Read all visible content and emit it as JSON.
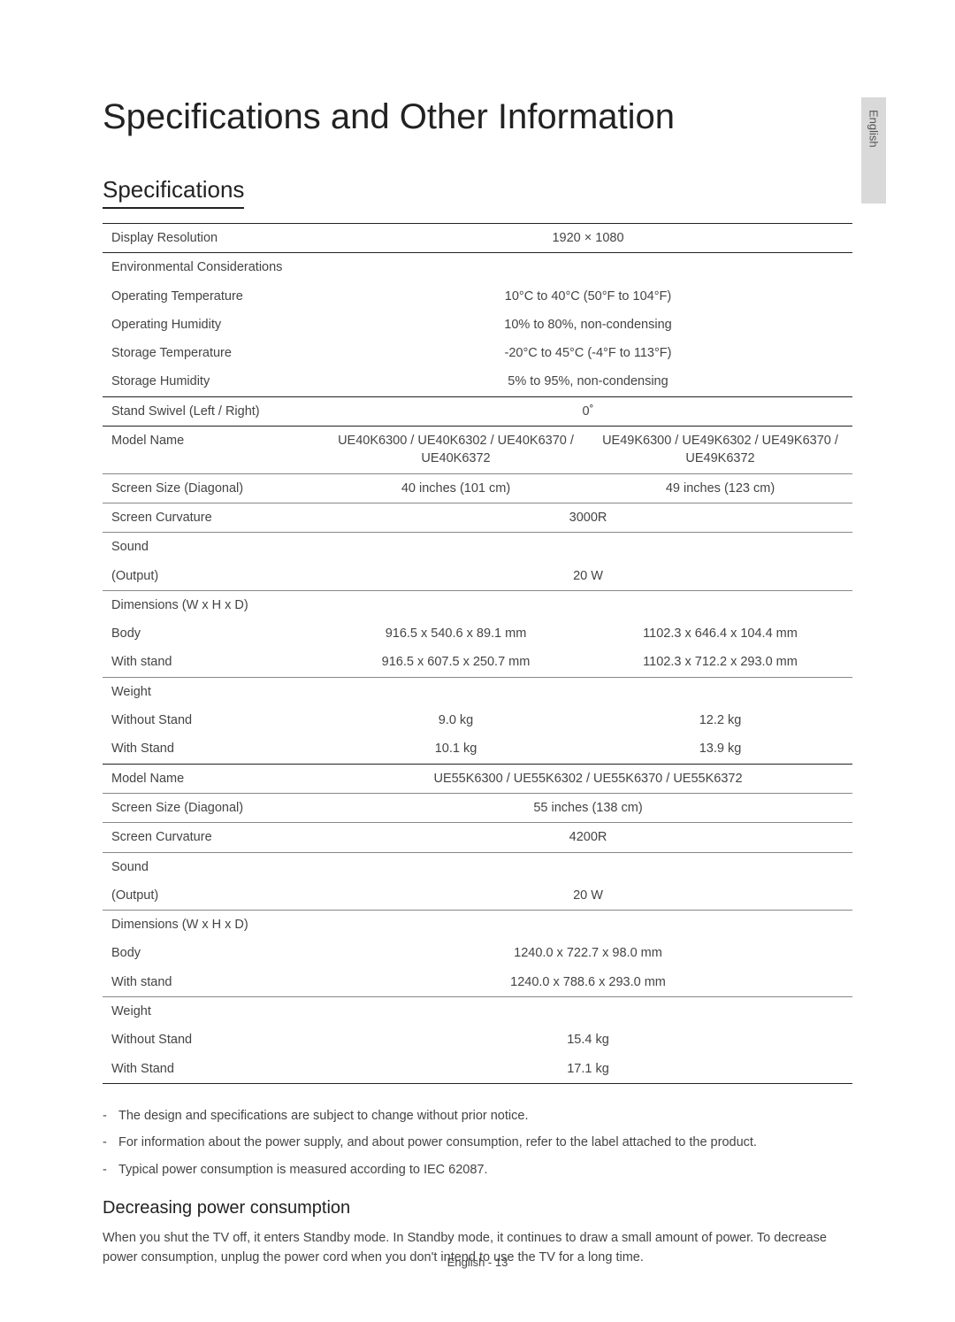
{
  "sideTab": "English",
  "title": "Specifications and Other Information",
  "sectionHeading": "Specifications",
  "rows": [
    {
      "cls": "section-top",
      "label": "Display Resolution",
      "cells": [
        "1920 × 1080"
      ],
      "span": 2
    },
    {
      "cls": "section-top",
      "label": "Environmental Considerations",
      "cells": [
        ""
      ],
      "span": 2
    },
    {
      "cls": "",
      "label": "Operating Temperature",
      "cells": [
        "10°C to 40°C (50°F to 104°F)"
      ],
      "span": 2
    },
    {
      "cls": "",
      "label": "Operating Humidity",
      "cells": [
        "10% to 80%, non-condensing"
      ],
      "span": 2
    },
    {
      "cls": "",
      "label": "Storage Temperature",
      "cells": [
        "-20°C to 45°C (-4°F to 113°F)"
      ],
      "span": 2
    },
    {
      "cls": "",
      "label": "Storage Humidity",
      "cells": [
        "5% to 95%, non-condensing"
      ],
      "span": 2
    },
    {
      "cls": "section-top",
      "label": "Stand Swivel (Left / Right)",
      "cells": [
        "0˚"
      ],
      "span": 2
    },
    {
      "cls": "section-top",
      "label": "Model Name",
      "cells": [
        "UE40K6300 / UE40K6302 / UE40K6370 / UE40K6372",
        "UE49K6300 / UE49K6302 / UE49K6370 / UE49K6372"
      ]
    },
    {
      "cls": "section-top-light",
      "label": "Screen Size (Diagonal)",
      "cells": [
        "40 inches (101 cm)",
        "49 inches (123 cm)"
      ]
    },
    {
      "cls": "section-top-light",
      "label": "Screen Curvature",
      "cells": [
        "3000R"
      ],
      "span": 2
    },
    {
      "cls": "section-top-light",
      "label": "Sound",
      "cells": [
        ""
      ],
      "span": 2
    },
    {
      "cls": "",
      "label": "(Output)",
      "cells": [
        "20 W"
      ],
      "span": 2
    },
    {
      "cls": "section-top-light",
      "label": "Dimensions (W x H x D)",
      "cells": [
        "",
        ""
      ]
    },
    {
      "cls": "",
      "label": "Body",
      "cells": [
        "916.5 x 540.6 x 89.1 mm",
        "1102.3 x 646.4 x 104.4 mm"
      ]
    },
    {
      "cls": "",
      "label": "With stand",
      "cells": [
        "916.5 x 607.5 x 250.7 mm",
        "1102.3 x 712.2 x 293.0 mm"
      ]
    },
    {
      "cls": "section-top-light",
      "label": "Weight",
      "cells": [
        "",
        ""
      ]
    },
    {
      "cls": "",
      "label": "Without Stand",
      "cells": [
        "9.0 kg",
        "12.2 kg"
      ]
    },
    {
      "cls": "",
      "label": "With Stand",
      "cells": [
        "10.1 kg",
        "13.9 kg"
      ]
    },
    {
      "cls": "section-top",
      "label": "Model Name",
      "cells": [
        "UE55K6300 / UE55K6302 / UE55K6370 / UE55K6372"
      ],
      "span": 2
    },
    {
      "cls": "section-top-light",
      "label": "Screen Size (Diagonal)",
      "cells": [
        "55 inches (138 cm)"
      ],
      "span": 2
    },
    {
      "cls": "section-top-light",
      "label": "Screen Curvature",
      "cells": [
        "4200R"
      ],
      "span": 2
    },
    {
      "cls": "section-top-light",
      "label": "Sound",
      "cells": [
        ""
      ],
      "span": 2
    },
    {
      "cls": "",
      "label": "(Output)",
      "cells": [
        "20 W"
      ],
      "span": 2
    },
    {
      "cls": "section-top-light",
      "label": "Dimensions (W x H x D)",
      "cells": [
        ""
      ],
      "span": 2
    },
    {
      "cls": "",
      "label": "Body",
      "cells": [
        "1240.0 x 722.7 x 98.0 mm"
      ],
      "span": 2
    },
    {
      "cls": "",
      "label": "With stand",
      "cells": [
        "1240.0 x 788.6 x 293.0 mm"
      ],
      "span": 2
    },
    {
      "cls": "section-top-light",
      "label": "Weight",
      "cells": [
        ""
      ],
      "span": 2
    },
    {
      "cls": "",
      "label": "Without Stand",
      "cells": [
        "15.4 kg"
      ],
      "span": 2
    },
    {
      "cls": "last",
      "label": "With Stand",
      "cells": [
        "17.1 kg"
      ],
      "span": 2
    }
  ],
  "notes": [
    "The design and specifications are subject to change without prior notice.",
    "For information about the power supply, and about power consumption, refer to the label attached to the product.",
    "Typical power consumption is measured according to IEC 62087."
  ],
  "subHeading": "Decreasing power consumption",
  "bodyText": "When you shut the TV off, it enters Standby mode. In Standby mode, it continues to draw a small amount of power. To decrease power consumption, unplug the power cord when you don't intend to use the TV for a long time.",
  "footer": "English - 13"
}
